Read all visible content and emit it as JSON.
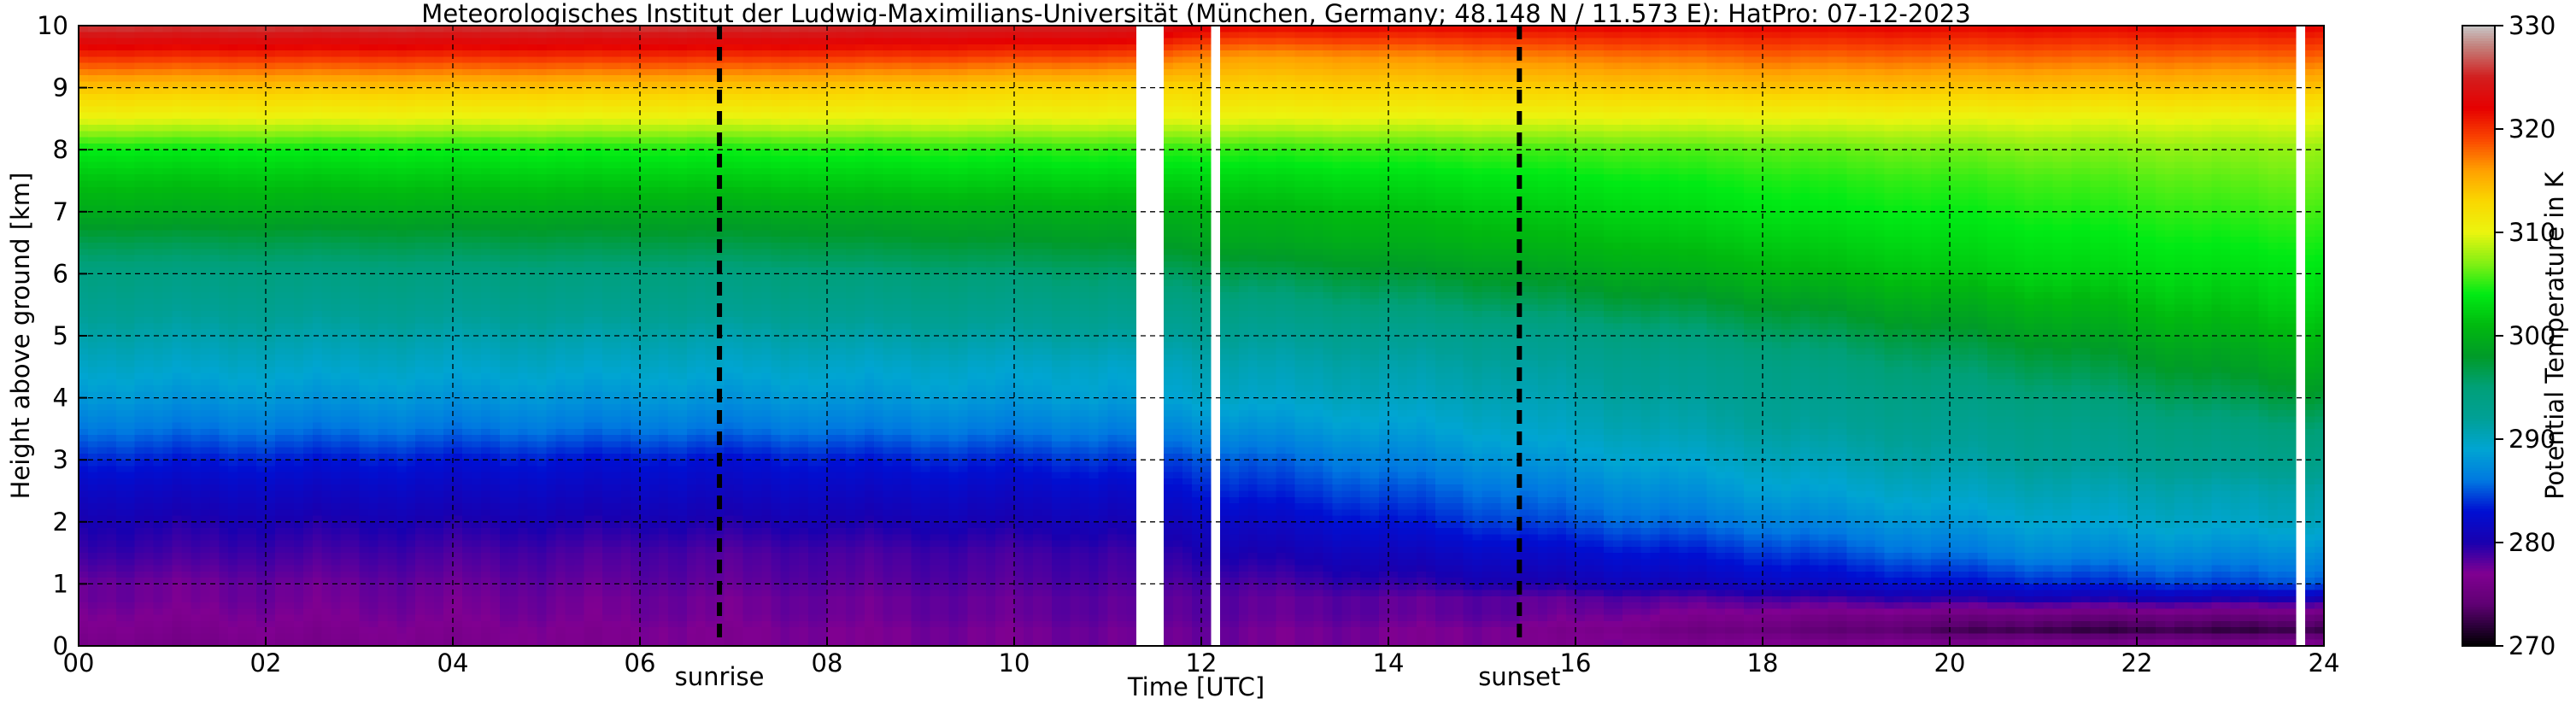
{
  "chart_data": {
    "type": "heatmap",
    "title": "Meteorologisches Institut der Ludwig-Maximilians-Universität (München, Germany; 48.148 N / 11.573 E):    HatPro: 07-12-2023",
    "xlabel": "Time [UTC]",
    "ylabel": "Height above ground [km]",
    "colorbar_label": "Potential Temperature in K",
    "xlim": [
      0,
      24
    ],
    "ylim": [
      0,
      10
    ],
    "clim": [
      270,
      330
    ],
    "x_ticks": [
      0,
      2,
      4,
      6,
      8,
      10,
      12,
      14,
      16,
      18,
      20,
      22,
      24
    ],
    "x_tick_labels": [
      "00",
      "02",
      "04",
      "06",
      "08",
      "10",
      "12",
      "14",
      "16",
      "18",
      "20",
      "22",
      "24"
    ],
    "y_ticks": [
      0,
      1,
      2,
      3,
      4,
      5,
      6,
      7,
      8,
      9,
      10
    ],
    "y_tick_labels": [
      "0",
      "1",
      "2",
      "3",
      "4",
      "5",
      "6",
      "7",
      "8",
      "9",
      "10"
    ],
    "colorbar_ticks": [
      270,
      280,
      290,
      300,
      310,
      320,
      330
    ],
    "colorbar_tick_labels": [
      "270",
      "280",
      "290",
      "300",
      "310",
      "320",
      "330"
    ],
    "grid": true,
    "markers": [
      {
        "label": "sunrise",
        "x": 6.85
      },
      {
        "label": "sunset",
        "x": 15.4
      }
    ],
    "data_gaps": [
      [
        11.27,
        11.55
      ],
      [
        12.12,
        12.22
      ],
      [
        23.7,
        23.78
      ]
    ],
    "profile_heights_km": [
      0,
      0.25,
      0.5,
      0.75,
      1,
      1.5,
      2,
      2.5,
      3,
      3.5,
      4,
      4.5,
      5,
      5.5,
      6,
      6.5,
      7,
      7.5,
      8,
      8.5,
      9,
      9.5,
      10
    ],
    "profile_times_utc": [
      0,
      6.85,
      11.2,
      12.3,
      15.4,
      18,
      21,
      24
    ],
    "theta_K": [
      [
        276,
        277,
        277.5,
        277.5,
        277,
        277,
        277,
        277
      ],
      [
        276.5,
        277,
        277.5,
        277.5,
        277,
        275,
        272.5,
        272.5
      ],
      [
        277,
        277.5,
        278,
        278,
        278,
        276.5,
        275,
        275
      ],
      [
        277.5,
        277.5,
        278,
        278,
        278,
        278.5,
        280,
        280
      ],
      [
        277.5,
        278,
        278.5,
        278.5,
        280,
        281.5,
        283.5,
        285
      ],
      [
        279,
        278.5,
        279,
        280,
        282,
        284,
        287,
        287.5
      ],
      [
        280,
        280,
        280.5,
        281.5,
        284.5,
        286.5,
        289,
        290
      ],
      [
        281.5,
        281.5,
        282,
        283.5,
        286,
        288.5,
        290.5,
        291
      ],
      [
        283.5,
        283,
        284,
        285,
        288,
        290,
        292,
        293.5
      ],
      [
        286,
        286,
        286.5,
        287.5,
        289.5,
        291.5,
        293,
        295
      ],
      [
        288,
        288,
        288.5,
        289.5,
        290.5,
        292.5,
        294.5,
        297.5
      ],
      [
        289.5,
        289.5,
        289.5,
        290.5,
        291.5,
        293.5,
        296.5,
        299.5
      ],
      [
        291,
        291,
        291.5,
        292,
        293,
        295.5,
        298.5,
        301
      ],
      [
        292.5,
        293,
        293.5,
        294,
        296,
        298,
        300.5,
        302.5
      ],
      [
        294,
        294.5,
        295.5,
        296.5,
        298.5,
        300.5,
        302.5,
        303.5
      ],
      [
        296.5,
        297,
        298,
        299,
        300.5,
        302,
        303.5,
        304.5
      ],
      [
        299.5,
        299.5,
        300,
        300.5,
        302,
        303.5,
        304.5,
        305.5
      ],
      [
        301.5,
        302,
        302.5,
        302.5,
        303.5,
        304.5,
        305.5,
        306.5
      ],
      [
        304,
        304.5,
        305,
        305,
        305.5,
        306,
        307,
        307.5
      ],
      [
        310,
        310,
        310,
        310,
        310,
        310,
        310,
        310
      ],
      [
        314,
        314,
        313,
        313,
        313.5,
        314,
        314,
        314
      ],
      [
        320,
        320,
        319,
        316,
        317,
        318,
        318,
        318
      ],
      [
        326,
        326,
        325,
        322,
        322,
        322,
        322,
        322
      ]
    ]
  }
}
